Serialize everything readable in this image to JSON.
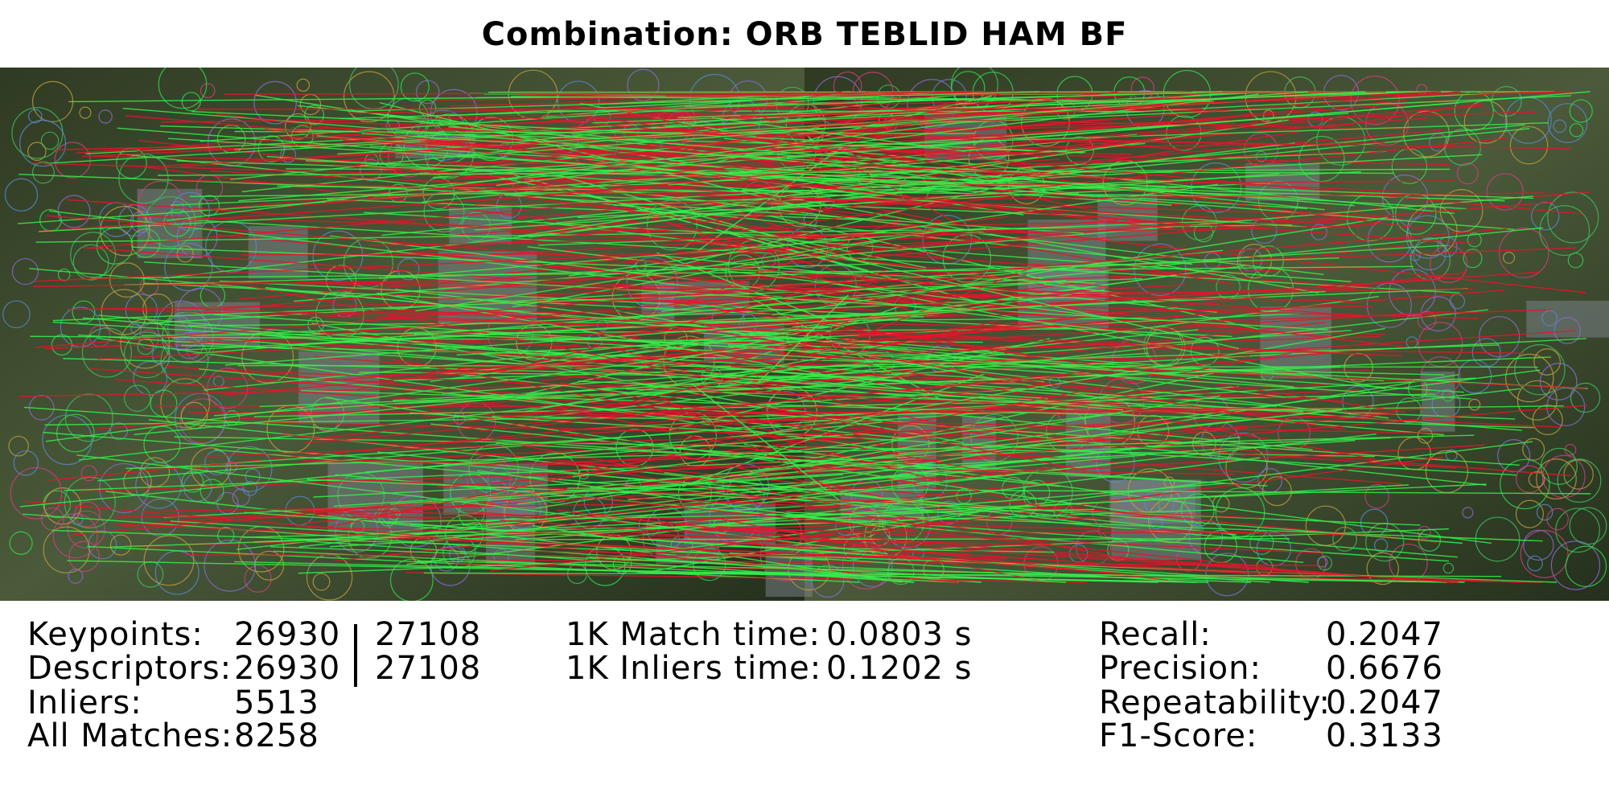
{
  "title": "Combination: ORB TEBLID HAM BF",
  "left": {
    "rows": [
      {
        "label": "Keypoints:",
        "values": [
          "26930",
          "27108"
        ]
      },
      {
        "label": "Descriptors:",
        "values": [
          "26930",
          "27108"
        ]
      },
      {
        "label": "Inliers:",
        "values": [
          "5513"
        ]
      },
      {
        "label": "All Matches:",
        "values": [
          "8258"
        ]
      }
    ]
  },
  "middle": {
    "rows": [
      {
        "label": "1K Match time:",
        "values": [
          "0.0803 s"
        ]
      },
      {
        "label": "1K Inliers time:",
        "values": [
          "0.1202 s"
        ]
      }
    ]
  },
  "right": {
    "rows": [
      {
        "label": "Recall:",
        "values": [
          "0.2047"
        ]
      },
      {
        "label": "Precision:",
        "values": [
          "0.6676"
        ]
      },
      {
        "label": "Repeatability:",
        "values": [
          "0.2047"
        ]
      },
      {
        "label": "F1-Score:",
        "values": [
          "0.3133"
        ]
      }
    ]
  }
}
